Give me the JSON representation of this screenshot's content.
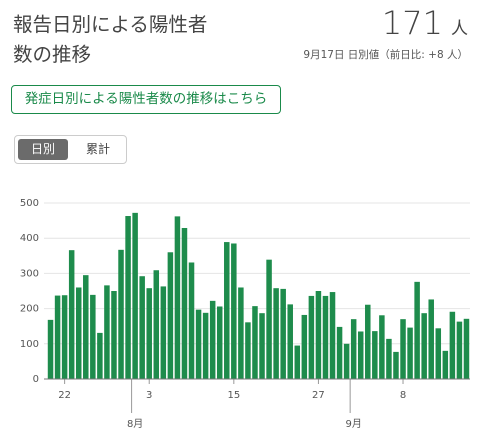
{
  "header": {
    "title": "報告日別による陽性者数の推移",
    "value": "171",
    "unit": "人",
    "subtitle": "9月17日 日別値（前日比: +8 人）"
  },
  "link_button": "発症日別による陽性者数の推移はこちら",
  "toggle": [
    "日別",
    "累計"
  ],
  "chart_data": {
    "type": "bar",
    "color": "#1e8c4c",
    "grid": true,
    "categories": [
      null,
      null,
      "22",
      null,
      null,
      null,
      null,
      null,
      null,
      null,
      null,
      null,
      null,
      null,
      "3",
      null,
      null,
      null,
      null,
      null,
      null,
      null,
      null,
      null,
      null,
      null,
      "15",
      null,
      null,
      null,
      null,
      null,
      null,
      null,
      null,
      null,
      null,
      null,
      "27",
      null,
      null,
      null,
      null,
      null,
      null,
      null,
      null,
      null,
      null,
      null,
      "8",
      null,
      null,
      null,
      null,
      null,
      null,
      null,
      null,
      null
    ],
    "month_categories": [
      null,
      null,
      null,
      null,
      null,
      null,
      null,
      null,
      null,
      null,
      null,
      null,
      "8月",
      null,
      null,
      null,
      null,
      null,
      null,
      null,
      null,
      null,
      null,
      null,
      null,
      null,
      null,
      null,
      null,
      null,
      null,
      null,
      null,
      null,
      null,
      null,
      null,
      null,
      null,
      null,
      null,
      null,
      null,
      "9月",
      null,
      null,
      null,
      null,
      null,
      null,
      null,
      null,
      null,
      null,
      null,
      null,
      null,
      null,
      null,
      null
    ],
    "values": [
      168,
      237,
      238,
      366,
      260,
      295,
      239,
      131,
      266,
      250,
      367,
      463,
      472,
      292,
      258,
      309,
      263,
      360,
      462,
      429,
      331,
      197,
      188,
      222,
      206,
      389,
      385,
      260,
      161,
      207,
      187,
      339,
      258,
      256,
      212,
      95,
      182,
      236,
      250,
      236,
      247,
      148,
      100,
      170,
      135,
      211,
      136,
      181,
      114,
      77,
      170,
      146,
      276,
      187,
      226,
      144,
      80,
      191,
      163,
      171
    ],
    "ylim": [
      0,
      500
    ],
    "yticks": [
      0,
      100,
      200,
      300,
      400,
      500
    ]
  }
}
